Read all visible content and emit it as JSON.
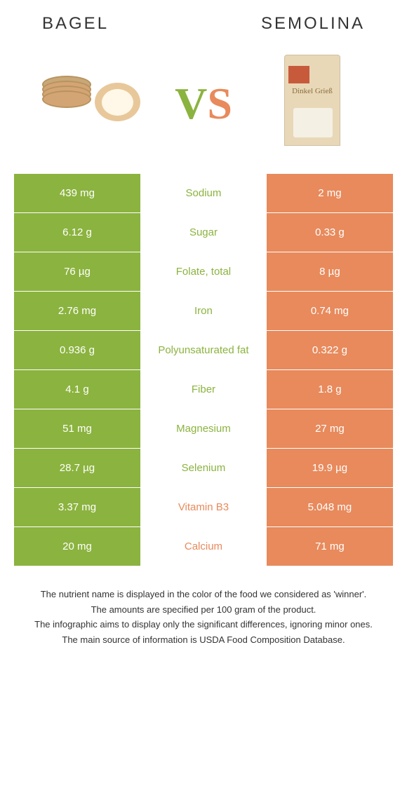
{
  "colors": {
    "left_bg": "#8bb33f",
    "right_bg": "#e88a5c",
    "left_text": "#8bb33f",
    "right_text": "#e88a5c",
    "cell_text": "#ffffff",
    "note_text": "#333333"
  },
  "header": {
    "left_title": "BAGEL",
    "right_title": "SEMOLINA",
    "vs_v": "V",
    "vs_s": "S",
    "package_text": "Dinkel\nGrieß"
  },
  "rows": [
    {
      "left": "439 mg",
      "label": "Sodium",
      "right": "2 mg",
      "winner": "left"
    },
    {
      "left": "6.12 g",
      "label": "Sugar",
      "right": "0.33 g",
      "winner": "left"
    },
    {
      "left": "76 µg",
      "label": "Folate, total",
      "right": "8 µg",
      "winner": "left"
    },
    {
      "left": "2.76 mg",
      "label": "Iron",
      "right": "0.74 mg",
      "winner": "left"
    },
    {
      "left": "0.936 g",
      "label": "Polyunsaturated fat",
      "right": "0.322 g",
      "winner": "left"
    },
    {
      "left": "4.1 g",
      "label": "Fiber",
      "right": "1.8 g",
      "winner": "left"
    },
    {
      "left": "51 mg",
      "label": "Magnesium",
      "right": "27 mg",
      "winner": "left"
    },
    {
      "left": "28.7 µg",
      "label": "Selenium",
      "right": "19.9 µg",
      "winner": "left"
    },
    {
      "left": "3.37 mg",
      "label": "Vitamin B3",
      "right": "5.048 mg",
      "winner": "right"
    },
    {
      "left": "20 mg",
      "label": "Calcium",
      "right": "71 mg",
      "winner": "right"
    }
  ],
  "notes": [
    "The nutrient name is displayed in the color of the food we considered as 'winner'.",
    "The amounts are specified per 100 gram of the product.",
    "The infographic aims to display only the significant differences, ignoring minor ones.",
    "The main source of information is USDA Food Composition Database."
  ]
}
